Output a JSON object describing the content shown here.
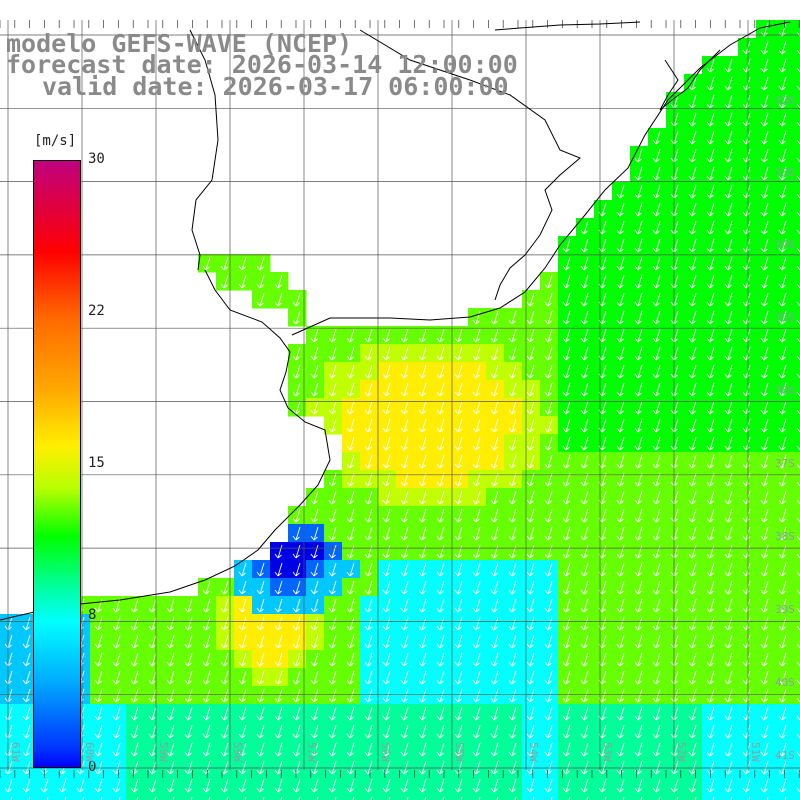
{
  "title": {
    "line1": "modelo GEFS-WAVE (NCEP)",
    "line2": "forecast date: 2026-03-14 12:00:00",
    "line3": "valid date: 2026-03-17 06:00:00"
  },
  "colorbar": {
    "unit": "[m/s]",
    "ticks": [
      "30",
      "22",
      "15",
      "8",
      "0"
    ]
  },
  "map": {
    "lon_labels": [
      "61W",
      "60W",
      "59W",
      "58W",
      "57W",
      "56W",
      "55W",
      "54W",
      "53W",
      "52W",
      "51W"
    ],
    "lat_labels": [
      "32S",
      "33S",
      "34S",
      "35S",
      "36S",
      "37S",
      "38S",
      "39S",
      "40S",
      "41S"
    ],
    "wind_direction": "SSW"
  },
  "palette": {
    "cyan": "#00ffff",
    "lightblue": "#00c8ff",
    "blue": "#0066ff",
    "darkblue": "#0000e6",
    "teal": "#00ff99",
    "green": "#00ff00",
    "lightgreen": "#66ff00",
    "yellowgreen": "#c0ff00",
    "yellow": "#ffee00"
  }
}
